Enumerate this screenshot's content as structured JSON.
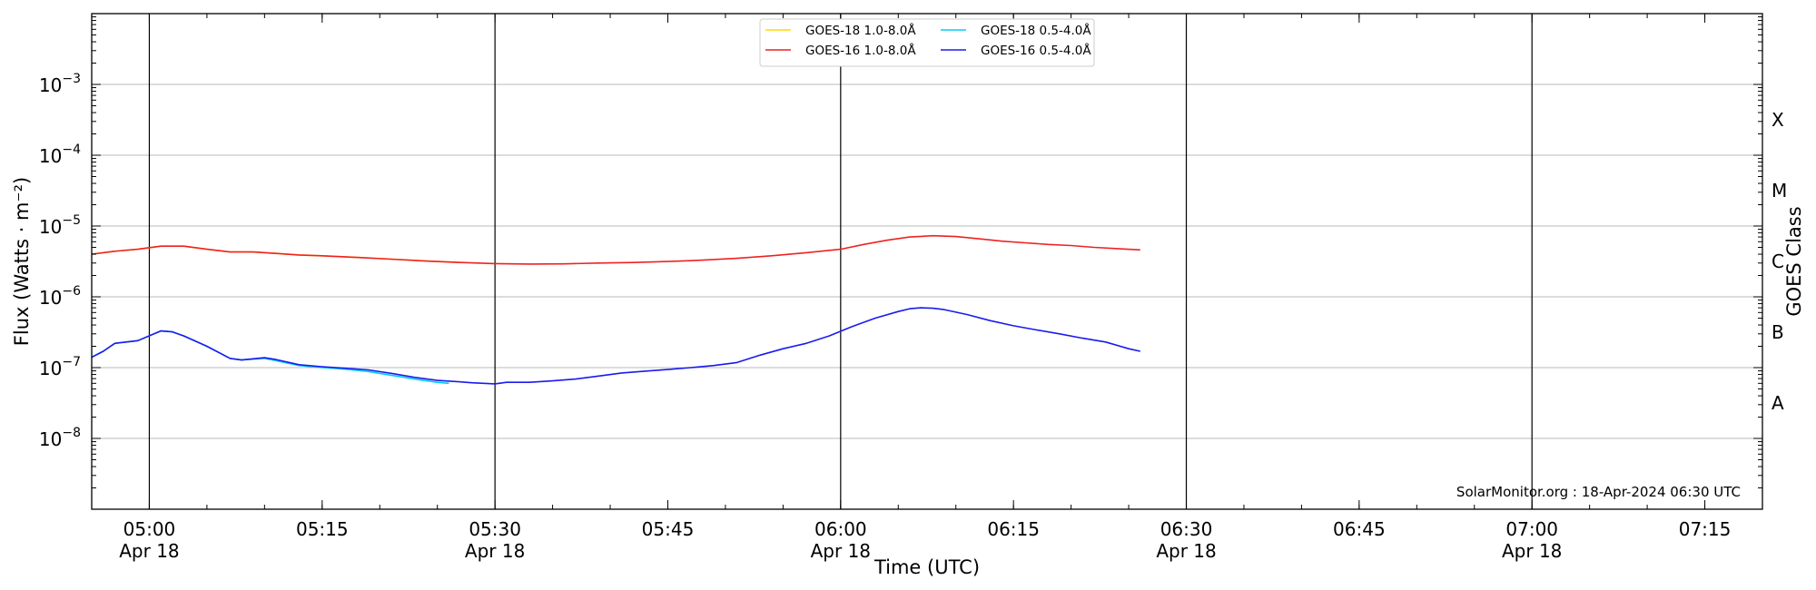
{
  "chart_data": {
    "type": "line",
    "xlabel": "Time (UTC)",
    "ylabel": "Flux (Watts · m⁻²)",
    "y2label": "GOES Class",
    "yscale": "log",
    "xlim": [
      "04:55",
      "07:20"
    ],
    "ylim_exponent": [
      -9,
      -2
    ],
    "grid": "horizontal",
    "legend_position": "top-center",
    "x_ticks": [
      {
        "time": "05:00",
        "label": "05:00",
        "sub": "Apr 18"
      },
      {
        "time": "05:15",
        "label": "05:15",
        "sub": ""
      },
      {
        "time": "05:30",
        "label": "05:30",
        "sub": "Apr 18"
      },
      {
        "time": "05:45",
        "label": "05:45",
        "sub": ""
      },
      {
        "time": "06:00",
        "label": "06:00",
        "sub": "Apr 18"
      },
      {
        "time": "06:15",
        "label": "06:15",
        "sub": ""
      },
      {
        "time": "06:30",
        "label": "06:30",
        "sub": "Apr 18"
      },
      {
        "time": "06:45",
        "label": "06:45",
        "sub": ""
      },
      {
        "time": "07:00",
        "label": "07:00",
        "sub": "Apr 18"
      },
      {
        "time": "07:15",
        "label": "07:15",
        "sub": ""
      }
    ],
    "vertical_lines": [
      "05:00",
      "05:30",
      "06:00",
      "06:30",
      "07:00"
    ],
    "y_ticks": [
      {
        "exp": -8,
        "label": "10",
        "sup": "−8"
      },
      {
        "exp": -7,
        "label": "10",
        "sup": "−7"
      },
      {
        "exp": -6,
        "label": "10",
        "sup": "−6"
      },
      {
        "exp": -5,
        "label": "10",
        "sup": "−5"
      },
      {
        "exp": -4,
        "label": "10",
        "sup": "−4"
      },
      {
        "exp": -3,
        "label": "10",
        "sup": "−3"
      }
    ],
    "goes_classes": [
      {
        "label": "A",
        "exp": -7.5
      },
      {
        "label": "B",
        "exp": -6.5
      },
      {
        "label": "C",
        "exp": -5.5
      },
      {
        "label": "M",
        "exp": -4.5
      },
      {
        "label": "X",
        "exp": -3.5
      }
    ],
    "watermark": "SolarMonitor.org : 18-Apr-2024 06:30 UTC",
    "series": [
      {
        "name": "GOES-18 1.0-8.0Å",
        "color": "#ffd700",
        "points": [
          [
            "04:55",
            4e-06
          ],
          [
            "04:57",
            4.4e-06
          ],
          [
            "04:59",
            4.7e-06
          ],
          [
            "05:01",
            5.2e-06
          ],
          [
            "05:03",
            5.2e-06
          ],
          [
            "05:05",
            4.7e-06
          ],
          [
            "05:07",
            4.3e-06
          ],
          [
            "05:09",
            4.3e-06
          ],
          [
            "05:11",
            4.1e-06
          ],
          [
            "05:13",
            3.9e-06
          ],
          [
            "05:15",
            3.8e-06
          ],
          [
            "05:18",
            3.6e-06
          ],
          [
            "05:21",
            3.4e-06
          ],
          [
            "05:24",
            3.2e-06
          ],
          [
            "05:27",
            3.05e-06
          ]
        ]
      },
      {
        "name": "GOES-16 1.0-8.0Å",
        "color": "#ee2222",
        "points": [
          [
            "04:55",
            4e-06
          ],
          [
            "04:57",
            4.4e-06
          ],
          [
            "04:59",
            4.7e-06
          ],
          [
            "05:01",
            5.2e-06
          ],
          [
            "05:03",
            5.2e-06
          ],
          [
            "05:05",
            4.7e-06
          ],
          [
            "05:07",
            4.3e-06
          ],
          [
            "05:09",
            4.3e-06
          ],
          [
            "05:11",
            4.1e-06
          ],
          [
            "05:13",
            3.9e-06
          ],
          [
            "05:15",
            3.8e-06
          ],
          [
            "05:18",
            3.6e-06
          ],
          [
            "05:21",
            3.4e-06
          ],
          [
            "05:24",
            3.2e-06
          ],
          [
            "05:27",
            3.05e-06
          ],
          [
            "05:30",
            2.95e-06
          ],
          [
            "05:33",
            2.9e-06
          ],
          [
            "05:36",
            2.92e-06
          ],
          [
            "05:39",
            3e-06
          ],
          [
            "05:42",
            3.05e-06
          ],
          [
            "05:45",
            3.15e-06
          ],
          [
            "05:48",
            3.3e-06
          ],
          [
            "05:51",
            3.5e-06
          ],
          [
            "05:54",
            3.8e-06
          ],
          [
            "05:57",
            4.2e-06
          ],
          [
            "06:00",
            4.7e-06
          ],
          [
            "06:02",
            5.5e-06
          ],
          [
            "06:04",
            6.3e-06
          ],
          [
            "06:06",
            7e-06
          ],
          [
            "06:08",
            7.3e-06
          ],
          [
            "06:10",
            7.1e-06
          ],
          [
            "06:12",
            6.6e-06
          ],
          [
            "06:14",
            6.1e-06
          ],
          [
            "06:16",
            5.8e-06
          ],
          [
            "06:18",
            5.5e-06
          ],
          [
            "06:20",
            5.3e-06
          ],
          [
            "06:22",
            5e-06
          ],
          [
            "06:24",
            4.8e-06
          ],
          [
            "06:26",
            4.6e-06
          ]
        ]
      },
      {
        "name": "GOES-18 0.5-4.0Å",
        "color": "#00ccff",
        "points": [
          [
            "04:55",
            1.4e-07
          ],
          [
            "04:56",
            1.7e-07
          ],
          [
            "04:57",
            2.2e-07
          ],
          [
            "04:59",
            2.4e-07
          ],
          [
            "05:01",
            3.3e-07
          ],
          [
            "05:02",
            3.2e-07
          ],
          [
            "05:03",
            2.8e-07
          ],
          [
            "05:05",
            2e-07
          ],
          [
            "05:07",
            1.35e-07
          ],
          [
            "05:08",
            1.28e-07
          ],
          [
            "05:10",
            1.35e-07
          ],
          [
            "05:11",
            1.25e-07
          ],
          [
            "05:13",
            1.07e-07
          ],
          [
            "05:15",
            1e-07
          ],
          [
            "05:17",
            9.5e-08
          ],
          [
            "05:19",
            8.8e-08
          ],
          [
            "05:21",
            7.8e-08
          ],
          [
            "05:23",
            6.9e-08
          ],
          [
            "05:25",
            6.2e-08
          ],
          [
            "05:26",
            6e-08
          ]
        ]
      },
      {
        "name": "GOES-16 0.5-4.0Å",
        "color": "#1a1aee",
        "points": [
          [
            "04:55",
            1.4e-07
          ],
          [
            "04:56",
            1.7e-07
          ],
          [
            "04:57",
            2.2e-07
          ],
          [
            "04:59",
            2.4e-07
          ],
          [
            "05:01",
            3.3e-07
          ],
          [
            "05:02",
            3.2e-07
          ],
          [
            "05:03",
            2.8e-07
          ],
          [
            "05:05",
            2e-07
          ],
          [
            "05:07",
            1.35e-07
          ],
          [
            "05:08",
            1.28e-07
          ],
          [
            "05:10",
            1.38e-07
          ],
          [
            "05:11",
            1.3e-07
          ],
          [
            "05:13",
            1.1e-07
          ],
          [
            "05:15",
            1.03e-07
          ],
          [
            "05:17",
            9.8e-08
          ],
          [
            "05:19",
            9.3e-08
          ],
          [
            "05:21",
            8.3e-08
          ],
          [
            "05:23",
            7.3e-08
          ],
          [
            "05:25",
            6.6e-08
          ],
          [
            "05:27",
            6.3e-08
          ],
          [
            "05:28",
            6.1e-08
          ],
          [
            "05:30",
            5.9e-08
          ],
          [
            "05:31",
            6.2e-08
          ],
          [
            "05:33",
            6.2e-08
          ],
          [
            "05:35",
            6.5e-08
          ],
          [
            "05:37",
            6.9e-08
          ],
          [
            "05:39",
            7.6e-08
          ],
          [
            "05:41",
            8.4e-08
          ],
          [
            "05:43",
            8.9e-08
          ],
          [
            "05:45",
            9.4e-08
          ],
          [
            "05:47",
            1e-07
          ],
          [
            "05:49",
            1.07e-07
          ],
          [
            "05:51",
            1.18e-07
          ],
          [
            "05:53",
            1.5e-07
          ],
          [
            "05:55",
            1.85e-07
          ],
          [
            "05:57",
            2.2e-07
          ],
          [
            "05:59",
            2.8e-07
          ],
          [
            "06:01",
            3.8e-07
          ],
          [
            "06:03",
            5e-07
          ],
          [
            "06:05",
            6.2e-07
          ],
          [
            "06:06",
            6.8e-07
          ],
          [
            "06:07",
            7e-07
          ],
          [
            "06:08",
            6.9e-07
          ],
          [
            "06:09",
            6.6e-07
          ],
          [
            "06:11",
            5.6e-07
          ],
          [
            "06:13",
            4.6e-07
          ],
          [
            "06:15",
            3.9e-07
          ],
          [
            "06:17",
            3.4e-07
          ],
          [
            "06:19",
            3e-07
          ],
          [
            "06:21",
            2.6e-07
          ],
          [
            "06:23",
            2.3e-07
          ],
          [
            "06:25",
            1.85e-07
          ],
          [
            "06:26",
            1.7e-07
          ]
        ]
      }
    ]
  }
}
